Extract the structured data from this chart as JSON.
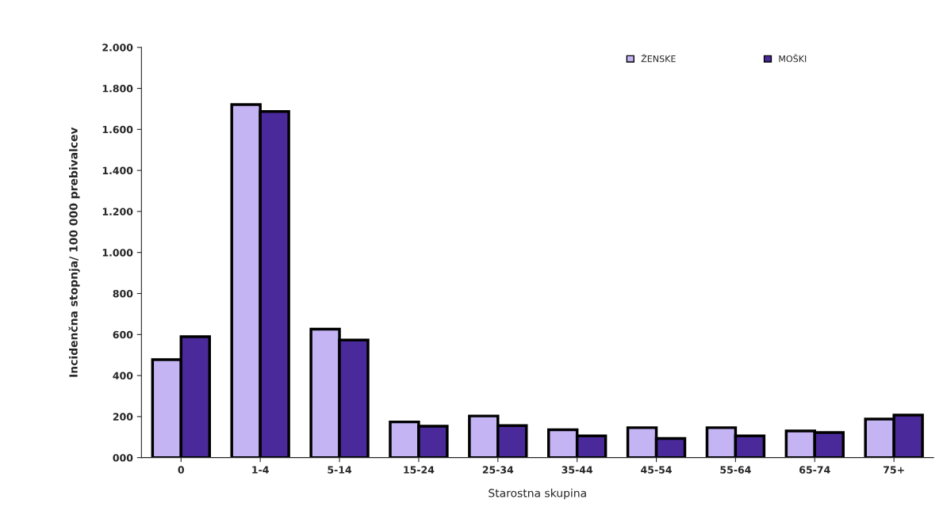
{
  "chart_data": {
    "type": "bar",
    "xlabel": "Starostna skupina",
    "ylabel": "Incidenčna stopnja/ 100 000 prebivalcev",
    "categories": [
      "0",
      "1-4",
      "5-14",
      "15-24",
      "25-34",
      "35-44",
      "45-54",
      "55-64",
      "65-74",
      "75+"
    ],
    "series": [
      {
        "name": "ŽENSKE",
        "color": "#c4b4f4",
        "values": [
          478,
          1721,
          626,
          174,
          203,
          136,
          146,
          146,
          130,
          188
        ]
      },
      {
        "name": "MOŠKI",
        "color": "#4a2a9a",
        "values": [
          590,
          1687,
          573,
          153,
          156,
          106,
          93,
          106,
          122,
          207
        ]
      }
    ],
    "ylim": [
      0,
      2000
    ],
    "yticks": [
      {
        "value": 0,
        "label": "000"
      },
      {
        "value": 200,
        "label": "200"
      },
      {
        "value": 400,
        "label": "400"
      },
      {
        "value": 600,
        "label": "600"
      },
      {
        "value": 800,
        "label": "800"
      },
      {
        "value": 1000,
        "label": "1.000"
      },
      {
        "value": 1200,
        "label": "1.200"
      },
      {
        "value": 1400,
        "label": "1.400"
      },
      {
        "value": 1600,
        "label": "1.600"
      },
      {
        "value": 1800,
        "label": "1.800"
      },
      {
        "value": 2000,
        "label": "2.000"
      }
    ],
    "grid": false,
    "legend": "top right"
  }
}
